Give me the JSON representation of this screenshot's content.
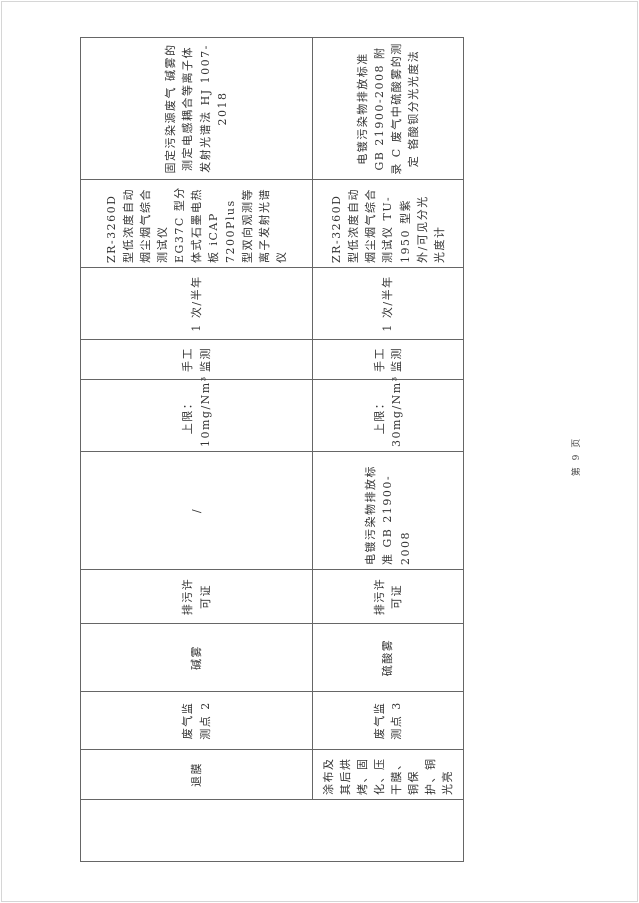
{
  "table": {
    "merged_cell": "",
    "rows": [
      {
        "process": "退膜",
        "point": "废气监测点 2",
        "pollutant": "碱雾",
        "basis": "排污许可证",
        "standard": "/",
        "limit": "上限：10mg/Nm³",
        "mode": "手工监测",
        "frequency": "1 次/半年",
        "instrument": "ZR-3260D 型低浓度自动烟尘烟气综合测试仪 EG37C 型分体式石墨电热板 iCAP 7200Plus 型双向观测等离子发射光谱仪",
        "method": "固定污染源废气 碱雾的测定电感耦合等离子体发射光谱法 HJ 1007-2018"
      },
      {
        "process": "涂布及其后烘烤、固化、压干膜、铜保护、铜光亮",
        "point": "废气监测点 3",
        "pollutant": "硫酸雾",
        "basis": "排污许可证",
        "standard": "电镀污染物排放标准 GB 21900-2008",
        "limit": "上限：30mg/Nm³",
        "mode": "手工监测",
        "frequency": "1 次/半年",
        "instrument": "ZR-3260D 型低浓度自动烟尘烟气综合测试仪 TU-1950 型紫外/可见分光光度计",
        "method": "电镀污染物排放标准 GB 21900-2008 附录 C 废气中硫酸雾的测定 铬酸钡分光光度法"
      }
    ]
  },
  "footer": {
    "page_number": "第 9 页"
  }
}
